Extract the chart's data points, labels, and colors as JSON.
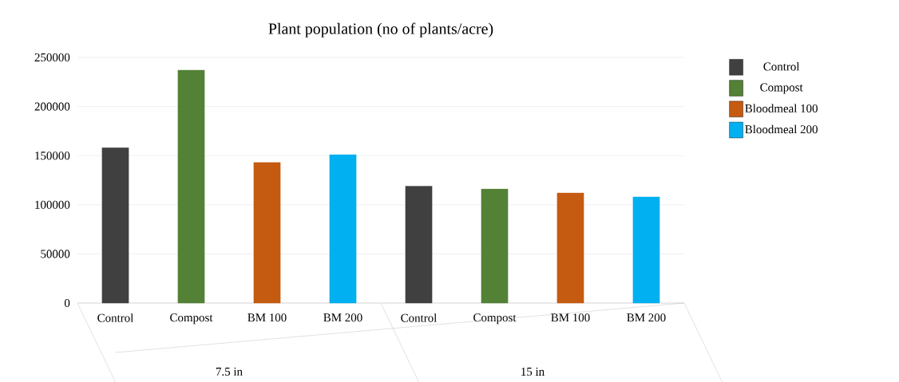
{
  "chart_data": {
    "type": "bar",
    "title": "Plant population (no of plants/acre)",
    "categories": [
      "Control",
      "Compost",
      "BM 100",
      "BM 200",
      "Control",
      "Compost",
      "BM 100",
      "BM 200"
    ],
    "series": [
      {
        "name": "Control",
        "color": "#404040",
        "values": [
          158000,
          null,
          null,
          null,
          119000,
          null,
          null,
          null
        ]
      },
      {
        "name": "Compost",
        "color": "#538135",
        "values": [
          null,
          237000,
          null,
          null,
          null,
          116000,
          null,
          null
        ]
      },
      {
        "name": "Bloodmeal 100",
        "color": "#c55a11",
        "values": [
          null,
          null,
          143000,
          null,
          null,
          null,
          112000,
          null
        ]
      },
      {
        "name": "Bloodmeal 200",
        "color": "#00b0f0",
        "values": [
          null,
          null,
          null,
          151000,
          null,
          null,
          null,
          108000
        ]
      }
    ],
    "annotations": [
      "7.5 in",
      "15 in"
    ],
    "ylim": [
      0,
      250000
    ],
    "yticks": [
      0,
      50000,
      100000,
      150000,
      200000,
      250000
    ],
    "grid": "y",
    "legend": "right"
  }
}
